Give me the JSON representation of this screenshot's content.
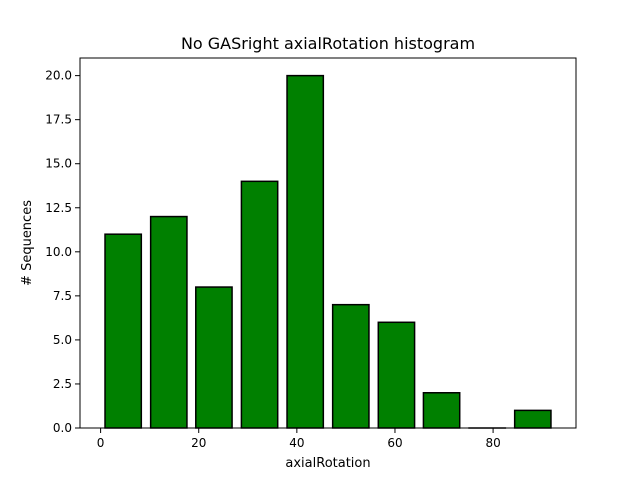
{
  "chart_data": {
    "type": "bar",
    "title": "No GASright axialRotation histogram",
    "xlabel": "axialRotation",
    "ylabel": "# Sequences",
    "x": [
      4.6,
      13.9,
      23.1,
      32.4,
      41.7,
      51.0,
      60.3,
      69.5,
      78.8,
      88.1
    ],
    "values": [
      11,
      12,
      8,
      14,
      20,
      7,
      6,
      2,
      0,
      1
    ],
    "bar_width": 7.4,
    "xlim": [
      -4.2,
      96.9
    ],
    "ylim": [
      0,
      21
    ],
    "xticks": [
      0,
      20,
      40,
      60,
      80
    ],
    "xtick_labels": [
      "0",
      "20",
      "40",
      "60",
      "80"
    ],
    "yticks": [
      0,
      2.5,
      5,
      7.5,
      10,
      12.5,
      15,
      17.5,
      20
    ],
    "ytick_labels": [
      "0.0",
      "2.5",
      "5.0",
      "7.5",
      "10.0",
      "12.5",
      "15.0",
      "17.5",
      "20.0"
    ],
    "bar_color": "#008000",
    "edge_color": "#000000",
    "grid": false
  }
}
